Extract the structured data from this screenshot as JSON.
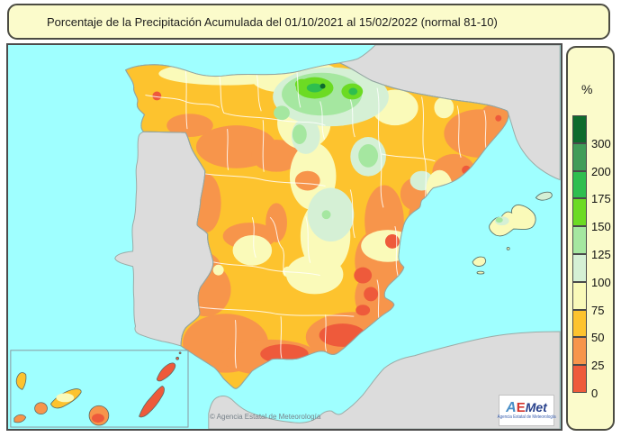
{
  "title": {
    "text": "Porcentaje de la Precipitación Acumulada del 01/10/2021 al 15/02/2022 (normal 81-10)"
  },
  "legend": {
    "unit": "%",
    "entries": [
      {
        "color": "#0E6B2D",
        "label": "300"
      },
      {
        "color": "#419C58",
        "label": "200"
      },
      {
        "color": "#2FBE4F",
        "label": "175"
      },
      {
        "color": "#6CDB23",
        "label": "150"
      },
      {
        "color": "#A5E7A0",
        "label": "125"
      },
      {
        "color": "#D5F0D5",
        "label": "100"
      },
      {
        "color": "#FAFAB9",
        "label": "75"
      },
      {
        "color": "#FDC32E",
        "label": "50"
      },
      {
        "color": "#F7954B",
        "label": "25"
      },
      {
        "color": "#EE5A3B",
        "label": "0"
      }
    ]
  },
  "map": {
    "copyright": "© Agencia Estatal de Meteorología",
    "sea_color": "#9FFFFF",
    "other_land_color": "#DCDCDC",
    "spain_base_color": "#FDC32E"
  },
  "logo": {
    "a": "A",
    "e": "E",
    "met": "Met",
    "subtitle": "Agencia Estatal de Meteorología"
  }
}
